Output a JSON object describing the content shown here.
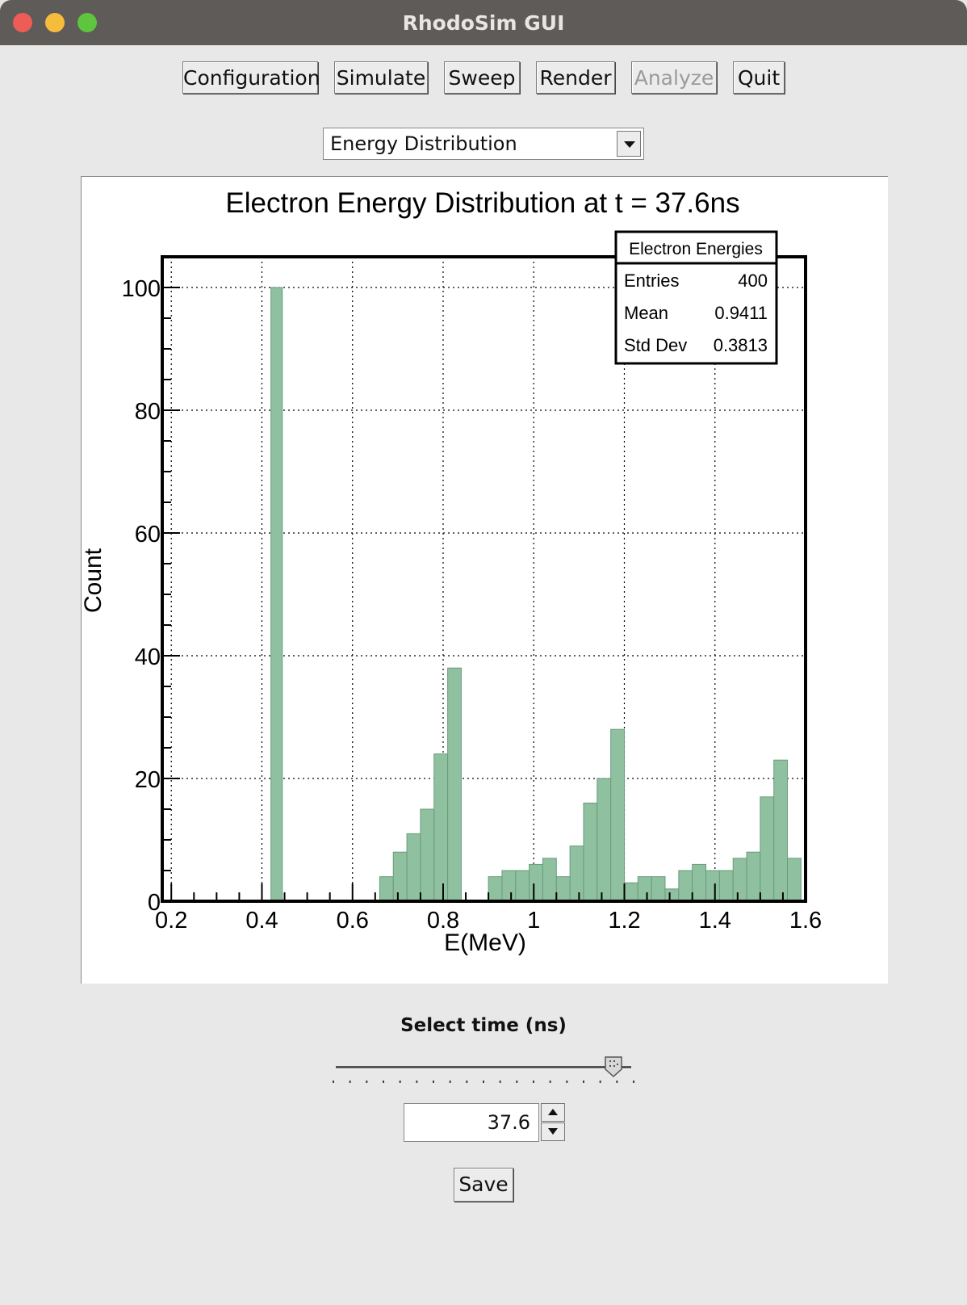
{
  "window": {
    "title": "RhodoSim GUI"
  },
  "toolbar": {
    "buttons": [
      {
        "label": "Configuration",
        "enabled": true
      },
      {
        "label": "Simulate",
        "enabled": true
      },
      {
        "label": "Sweep",
        "enabled": true
      },
      {
        "label": "Render",
        "enabled": true
      },
      {
        "label": "Analyze",
        "enabled": false
      },
      {
        "label": "Quit",
        "enabled": true
      }
    ]
  },
  "view_select": {
    "selected": "Energy Distribution"
  },
  "chart_data": {
    "type": "bar",
    "title": "Electron Energy Distribution at t = 37.6ns",
    "xlabel": "E(MeV)",
    "ylabel": "Count",
    "xlim": [
      0.18,
      1.6
    ],
    "ylim": [
      0,
      105
    ],
    "xticks": [
      "0.2",
      "0.4",
      "0.6",
      "0.8",
      "1",
      "1.2",
      "1.4",
      "1.6"
    ],
    "yticks": [
      "0",
      "20",
      "40",
      "60",
      "80",
      "100"
    ],
    "grid": true,
    "bar_color": "#8fc0a0",
    "bins": [
      {
        "x0": 0.42,
        "x1": 0.445,
        "v": 100
      },
      {
        "x0": 0.66,
        "x1": 0.69,
        "v": 4
      },
      {
        "x0": 0.69,
        "x1": 0.72,
        "v": 8
      },
      {
        "x0": 0.72,
        "x1": 0.75,
        "v": 11
      },
      {
        "x0": 0.75,
        "x1": 0.78,
        "v": 15
      },
      {
        "x0": 0.78,
        "x1": 0.81,
        "v": 24
      },
      {
        "x0": 0.81,
        "x1": 0.84,
        "v": 38
      },
      {
        "x0": 0.9,
        "x1": 0.93,
        "v": 4
      },
      {
        "x0": 0.93,
        "x1": 0.96,
        "v": 5
      },
      {
        "x0": 0.96,
        "x1": 0.99,
        "v": 5
      },
      {
        "x0": 0.99,
        "x1": 1.02,
        "v": 6
      },
      {
        "x0": 1.02,
        "x1": 1.05,
        "v": 7
      },
      {
        "x0": 1.05,
        "x1": 1.08,
        "v": 4
      },
      {
        "x0": 1.08,
        "x1": 1.11,
        "v": 9
      },
      {
        "x0": 1.11,
        "x1": 1.14,
        "v": 16
      },
      {
        "x0": 1.14,
        "x1": 1.17,
        "v": 20
      },
      {
        "x0": 1.17,
        "x1": 1.2,
        "v": 28
      },
      {
        "x0": 1.2,
        "x1": 1.23,
        "v": 3
      },
      {
        "x0": 1.23,
        "x1": 1.26,
        "v": 4
      },
      {
        "x0": 1.26,
        "x1": 1.29,
        "v": 4
      },
      {
        "x0": 1.29,
        "x1": 1.32,
        "v": 2
      },
      {
        "x0": 1.32,
        "x1": 1.35,
        "v": 5
      },
      {
        "x0": 1.35,
        "x1": 1.38,
        "v": 6
      },
      {
        "x0": 1.38,
        "x1": 1.41,
        "v": 5
      },
      {
        "x0": 1.41,
        "x1": 1.44,
        "v": 5
      },
      {
        "x0": 1.44,
        "x1": 1.47,
        "v": 7
      },
      {
        "x0": 1.47,
        "x1": 1.5,
        "v": 8
      },
      {
        "x0": 1.5,
        "x1": 1.53,
        "v": 17
      },
      {
        "x0": 1.53,
        "x1": 1.56,
        "v": 23
      },
      {
        "x0": 1.56,
        "x1": 1.59,
        "v": 7
      }
    ],
    "stats": {
      "title": "Electron Energies",
      "rows": [
        {
          "label": "Entries",
          "value": "400"
        },
        {
          "label": "Mean",
          "value": "0.9411"
        },
        {
          "label": "Std Dev",
          "value": "0.3813"
        }
      ]
    }
  },
  "time_control": {
    "label": "Select time (ns)",
    "value": "37.6",
    "slider_fraction": 0.94
  },
  "save_label": "Save"
}
